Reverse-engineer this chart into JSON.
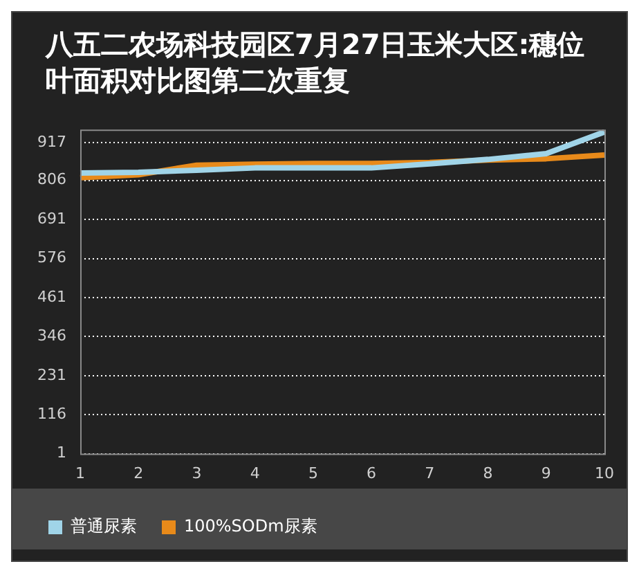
{
  "chart_data": {
    "type": "line",
    "title": "八五二农场科技园区7月27日玉米大区:穗位叶面积对比图第二次重复",
    "categories": [
      "1",
      "2",
      "3",
      "4",
      "5",
      "6",
      "7",
      "8",
      "9",
      "10"
    ],
    "series": [
      {
        "name": "普通尿素",
        "color": "#a0d4e8",
        "values": [
          828,
          830,
          836,
          843,
          843,
          843,
          855,
          868,
          885,
          949
        ]
      },
      {
        "name": "100%SODm尿素",
        "color": "#e88a1a",
        "values": [
          814,
          823,
          851,
          854,
          856,
          856,
          859,
          866,
          870,
          881
        ]
      }
    ],
    "ylim": [
      1,
      956
    ],
    "yticks": [
      1,
      116,
      231,
      346,
      461,
      576,
      691,
      806,
      917
    ],
    "grid": "y",
    "legend": "bottom left",
    "marker": "none",
    "line_style": "solid"
  }
}
